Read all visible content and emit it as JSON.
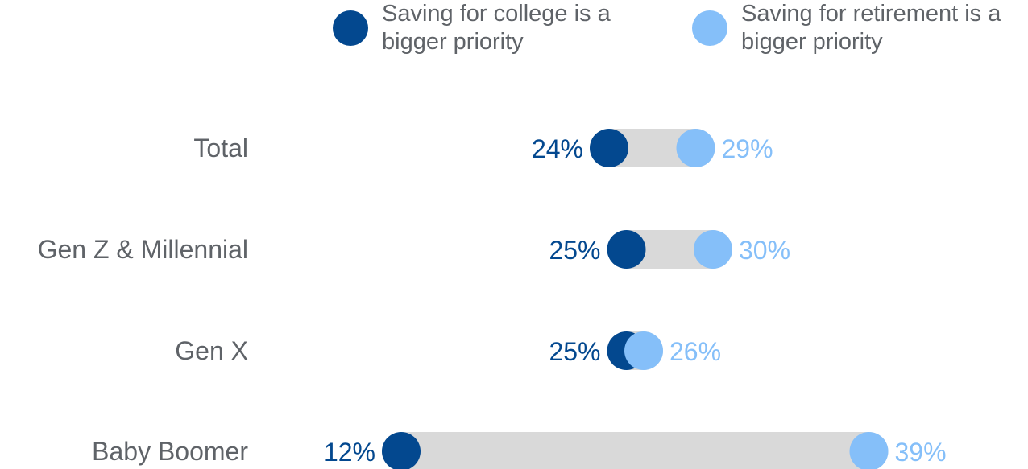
{
  "chart_data": {
    "type": "dumbbell",
    "title": "",
    "xlabel": "",
    "ylabel": "",
    "categories": [
      "Total",
      "Gen Z & Millennial",
      "Gen X",
      "Baby Boomer"
    ],
    "series": [
      {
        "name": "Saving for college is a bigger priority",
        "color": "#03488f",
        "values": [
          24,
          25,
          25,
          12
        ]
      },
      {
        "name": "Saving for retirement is a bigger priority",
        "color": "#85bff9",
        "values": [
          29,
          30,
          26,
          39
        ]
      }
    ],
    "value_labels": [
      [
        "24%",
        "25%",
        "25%",
        "12%"
      ],
      [
        "29%",
        "30%",
        "26%",
        "39%"
      ]
    ],
    "connector_color": "#d9d9d9",
    "legend": "top",
    "grid": false
  }
}
